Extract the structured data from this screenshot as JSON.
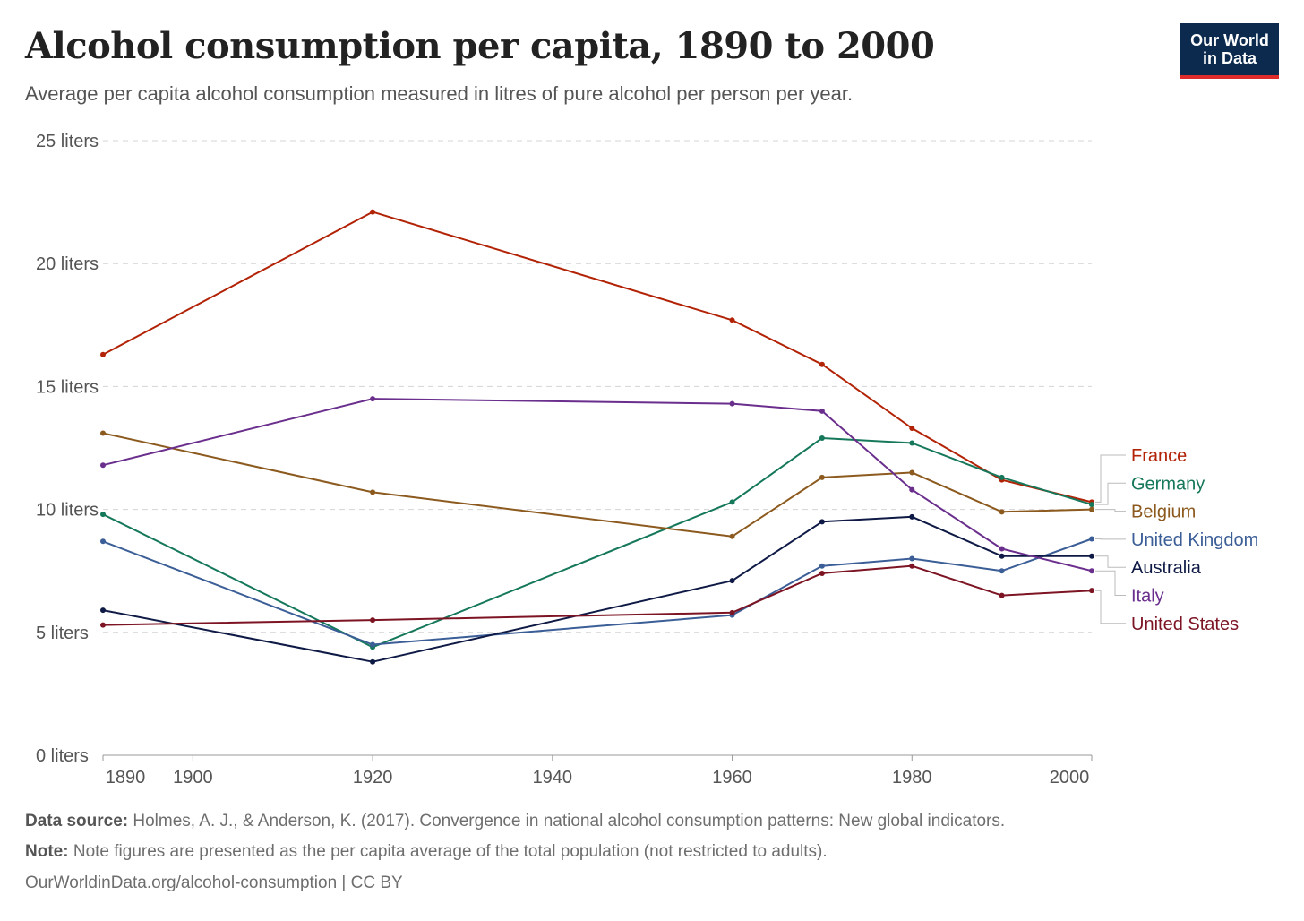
{
  "header": {
    "title": "Alcohol consumption per capita, 1890 to 2000",
    "subtitle": "Average per capita alcohol consumption measured in litres of pure alcohol per person per year."
  },
  "logo": {
    "line1": "Our World",
    "line2": "in Data",
    "bg_color": "#0b2a4e",
    "accent_color": "#e02b2b"
  },
  "chart_data": {
    "type": "line",
    "x_tick_labels": [
      "1890",
      "1900",
      "1920",
      "1940",
      "1960",
      "1980",
      "2000"
    ],
    "x_ticks": [
      1890,
      1900,
      1920,
      1940,
      1960,
      1980,
      2000
    ],
    "xlim": [
      1890,
      2000
    ],
    "y_ticks": [
      0,
      5,
      10,
      15,
      20,
      25
    ],
    "y_tick_labels": [
      "0 liters",
      "5 liters",
      "10 liters",
      "15 liters",
      "20 liters",
      "25 liters"
    ],
    "ylim": [
      0,
      25
    ],
    "grid": "horizontal dashed",
    "legend": "right, end-of-line labels",
    "series": [
      {
        "name": "France",
        "color": "#b22205",
        "points": [
          [
            1890,
            16.3
          ],
          [
            1920,
            22.1
          ],
          [
            1960,
            17.7
          ],
          [
            1970,
            15.9
          ],
          [
            1980,
            13.3
          ],
          [
            1990,
            11.2
          ],
          [
            2000,
            10.3
          ]
        ]
      },
      {
        "name": "Germany",
        "color": "#16785b",
        "points": [
          [
            1890,
            9.8
          ],
          [
            1920,
            4.4
          ],
          [
            1960,
            10.3
          ],
          [
            1970,
            12.9
          ],
          [
            1980,
            12.7
          ],
          [
            1990,
            11.3
          ],
          [
            2000,
            10.2
          ]
        ]
      },
      {
        "name": "Belgium",
        "color": "#8c5a1e",
        "points": [
          [
            1890,
            13.1
          ],
          [
            1920,
            10.7
          ],
          [
            1960,
            8.9
          ],
          [
            1970,
            11.3
          ],
          [
            1980,
            11.5
          ],
          [
            1990,
            9.9
          ],
          [
            2000,
            10.0
          ]
        ]
      },
      {
        "name": "United Kingdom",
        "color": "#3b5e97",
        "points": [
          [
            1890,
            8.7
          ],
          [
            1920,
            4.5
          ],
          [
            1960,
            5.7
          ],
          [
            1970,
            7.7
          ],
          [
            1980,
            8.0
          ],
          [
            1990,
            7.5
          ],
          [
            2000,
            8.8
          ]
        ]
      },
      {
        "name": "Australia",
        "color": "#0e1a45",
        "points": [
          [
            1890,
            5.9
          ],
          [
            1920,
            3.8
          ],
          [
            1960,
            7.1
          ],
          [
            1970,
            9.5
          ],
          [
            1980,
            9.7
          ],
          [
            1990,
            8.1
          ],
          [
            2000,
            8.1
          ]
        ]
      },
      {
        "name": "Italy",
        "color": "#6a2e8d",
        "points": [
          [
            1890,
            11.8
          ],
          [
            1920,
            14.5
          ],
          [
            1960,
            14.3
          ],
          [
            1970,
            14.0
          ],
          [
            1980,
            10.8
          ],
          [
            1990,
            8.4
          ],
          [
            2000,
            7.5
          ]
        ]
      },
      {
        "name": "United States",
        "color": "#7d1423",
        "points": [
          [
            1890,
            5.3
          ],
          [
            1920,
            5.5
          ],
          [
            1960,
            5.8
          ],
          [
            1970,
            7.4
          ],
          [
            1980,
            7.7
          ],
          [
            1990,
            6.5
          ],
          [
            2000,
            6.7
          ]
        ]
      }
    ]
  },
  "footer": {
    "source_label": "Data source:",
    "source_text": " Holmes, A. J., & Anderson, K. (2017). Convergence in national alcohol consumption patterns: New global indicators.",
    "note_label": "Note:",
    "note_text": " Note figures are presented as the per capita average of the total population (not restricted to adults).",
    "url_text": "OurWorldinData.org/alcohol-consumption | CC BY"
  }
}
